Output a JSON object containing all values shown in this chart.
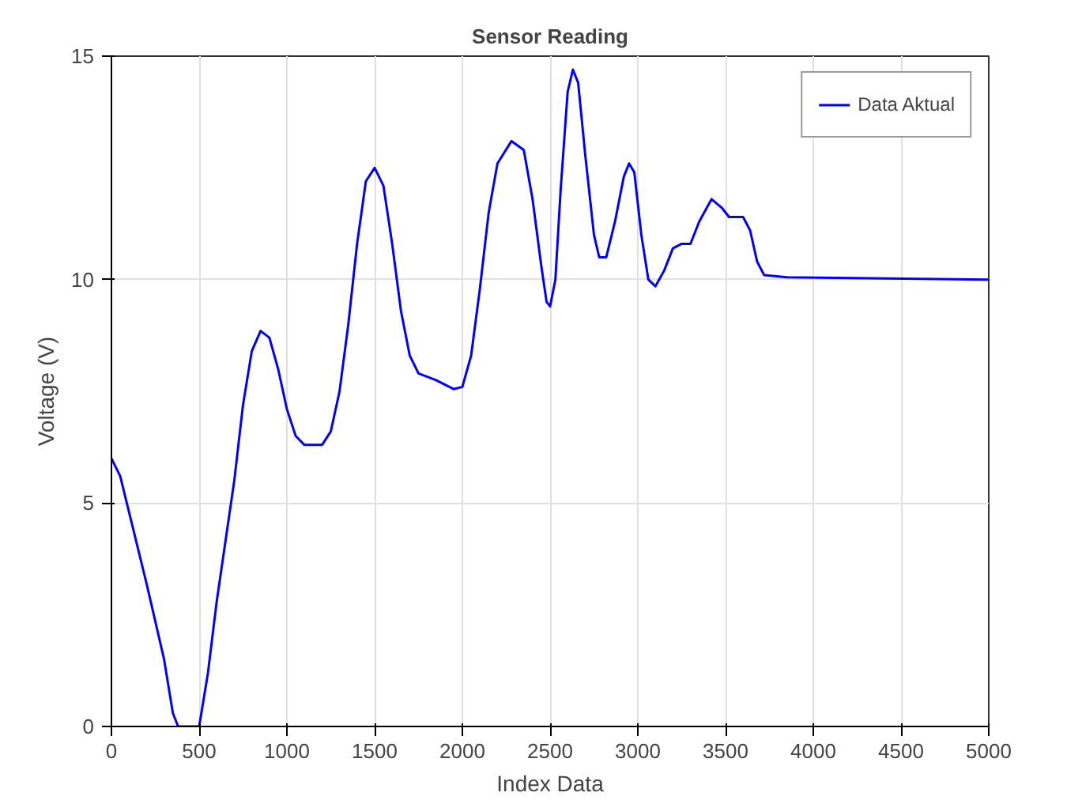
{
  "chart_data": {
    "type": "line",
    "title": "Sensor Reading",
    "xlabel": "Index Data",
    "ylabel": "Voltage (V)",
    "xlim": [
      0,
      5000
    ],
    "ylim": [
      0,
      15
    ],
    "xticks": [
      0,
      500,
      1000,
      1500,
      2000,
      2500,
      3000,
      3500,
      4000,
      4500,
      5000
    ],
    "yticks": [
      0,
      5,
      10,
      15
    ],
    "grid": true,
    "legend": "top right",
    "series": [
      {
        "name": "Data Aktual",
        "color": "#0000ff",
        "x": [
          0,
          50,
          100,
          200,
          300,
          350,
          380,
          500,
          550,
          600,
          700,
          750,
          800,
          850,
          900,
          950,
          1000,
          1050,
          1100,
          1200,
          1250,
          1300,
          1350,
          1400,
          1450,
          1500,
          1550,
          1600,
          1650,
          1700,
          1750,
          1850,
          1950,
          2000,
          2050,
          2100,
          2150,
          2200,
          2280,
          2350,
          2400,
          2450,
          2480,
          2500,
          2530,
          2560,
          2600,
          2630,
          2660,
          2700,
          2750,
          2780,
          2820,
          2870,
          2920,
          2950,
          2980,
          3020,
          3060,
          3100,
          3150,
          3200,
          3250,
          3300,
          3350,
          3420,
          3480,
          3520,
          3600,
          3640,
          3680,
          3720,
          3850,
          5000
        ],
        "values": [
          6.0,
          5.6,
          4.8,
          3.2,
          1.5,
          0.3,
          0,
          0,
          1.2,
          2.8,
          5.5,
          7.2,
          8.4,
          8.85,
          8.7,
          8.0,
          7.1,
          6.5,
          6.3,
          6.3,
          6.6,
          7.5,
          9.0,
          10.8,
          12.2,
          12.5,
          12.1,
          10.8,
          9.3,
          8.3,
          7.9,
          7.75,
          7.55,
          7.6,
          8.3,
          9.8,
          11.5,
          12.6,
          13.1,
          12.9,
          11.8,
          10.3,
          9.5,
          9.4,
          10.0,
          12.0,
          14.2,
          14.7,
          14.4,
          12.8,
          11.0,
          10.5,
          10.5,
          11.3,
          12.3,
          12.6,
          12.4,
          11.0,
          10.0,
          9.85,
          10.2,
          10.7,
          10.8,
          10.8,
          11.3,
          11.8,
          11.6,
          11.4,
          11.4,
          11.1,
          10.4,
          10.1,
          10.05,
          10.0
        ]
      }
    ]
  }
}
